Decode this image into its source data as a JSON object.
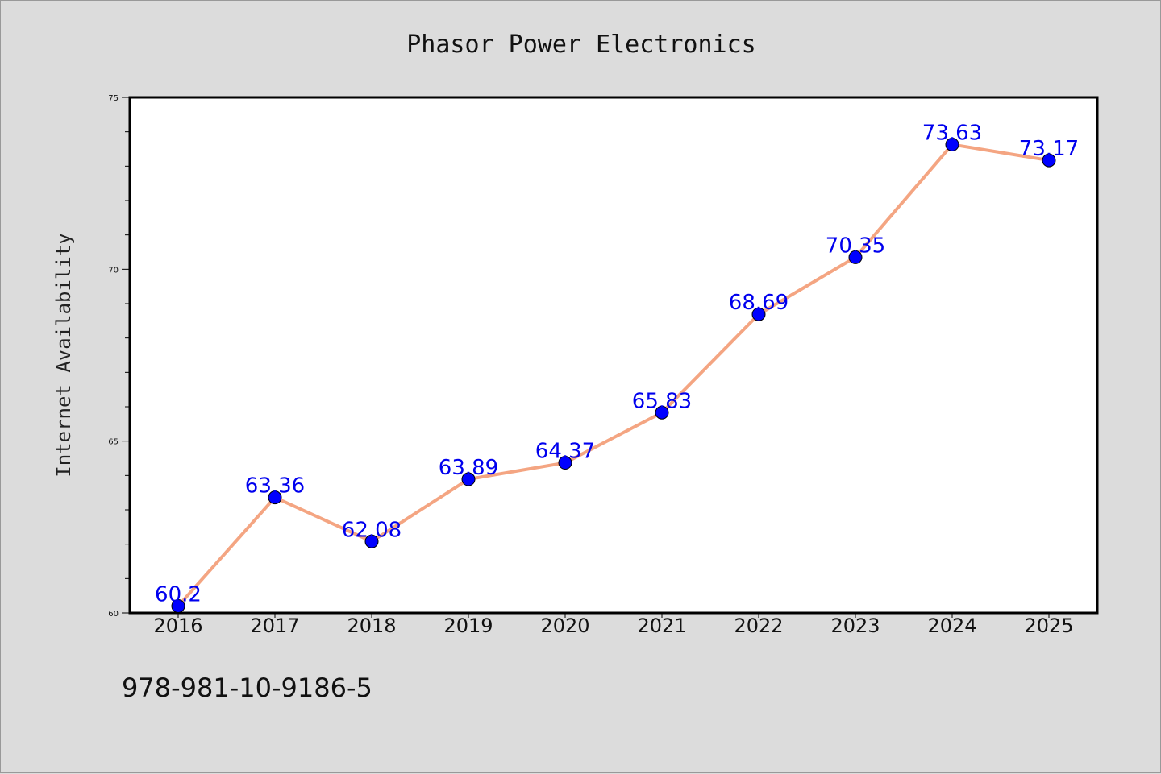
{
  "chart_data": {
    "type": "line",
    "title": "Phasor Power Electronics",
    "xlabel": "",
    "ylabel": "Internet Availability",
    "categories": [
      "2016",
      "2017",
      "2018",
      "2019",
      "2020",
      "2021",
      "2022",
      "2023",
      "2024",
      "2025"
    ],
    "values": [
      60.2,
      63.36,
      62.08,
      63.89,
      64.37,
      65.83,
      68.69,
      70.35,
      73.63,
      73.17
    ],
    "data_labels": [
      "60.2",
      "63.36",
      "62.08",
      "63.89",
      "64.37",
      "65.83",
      "68.69",
      "70.35",
      "73.63",
      "73.17"
    ],
    "ylim": [
      60,
      75
    ],
    "yticks": [
      60,
      65,
      70,
      75
    ],
    "grid": false,
    "line_color": "#f4a582",
    "marker_color": "#0000ff"
  },
  "footer": {
    "isbn": "978-981-10-9186-5"
  }
}
